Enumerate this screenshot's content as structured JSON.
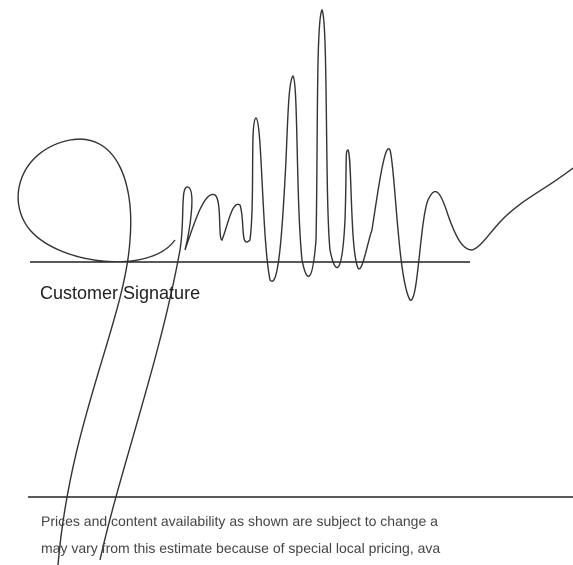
{
  "signature_label": "Customer Signature",
  "footer": {
    "lines": [
      "Prices and content availability as shown are subject to change a",
      "may vary from this estimate because of special local pricing, ava"
    ]
  }
}
